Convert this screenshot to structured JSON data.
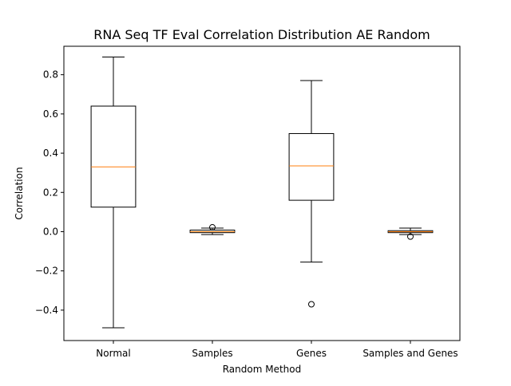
{
  "chart_data": {
    "type": "boxplot",
    "title": "RNA Seq TF Eval Correlation Distribution AE Random",
    "xlabel": "Random Method",
    "ylabel": "Correlation",
    "ylim": [
      -0.555,
      0.945
    ],
    "yticks": [
      -0.4,
      -0.2,
      0.0,
      0.2,
      0.4,
      0.6,
      0.8
    ],
    "ytick_labels": [
      "−0.4",
      "−0.2",
      "0.0",
      "0.2",
      "0.4",
      "0.6",
      "0.8"
    ],
    "grid": false,
    "categories": [
      "Normal",
      "Samples",
      "Genes",
      "Samples and Genes"
    ],
    "boxes": [
      {
        "whisker_low": -0.49,
        "q1": 0.125,
        "median": 0.33,
        "q3": 0.64,
        "whisker_high": 0.89,
        "outliers": []
      },
      {
        "whisker_low": -0.015,
        "q1": -0.005,
        "median": 0.0,
        "q3": 0.008,
        "whisker_high": 0.018,
        "outliers": [
          0.022
        ]
      },
      {
        "whisker_low": -0.155,
        "q1": 0.16,
        "median": 0.335,
        "q3": 0.5,
        "whisker_high": 0.77,
        "outliers": [
          -0.37
        ]
      },
      {
        "whisker_low": -0.015,
        "q1": -0.005,
        "median": 0.0,
        "q3": 0.005,
        "whisker_high": 0.018,
        "outliers": [
          -0.025
        ]
      }
    ],
    "colors": {
      "box": "#000000",
      "median": "#ff7f0e",
      "outlier": "#000000"
    }
  }
}
